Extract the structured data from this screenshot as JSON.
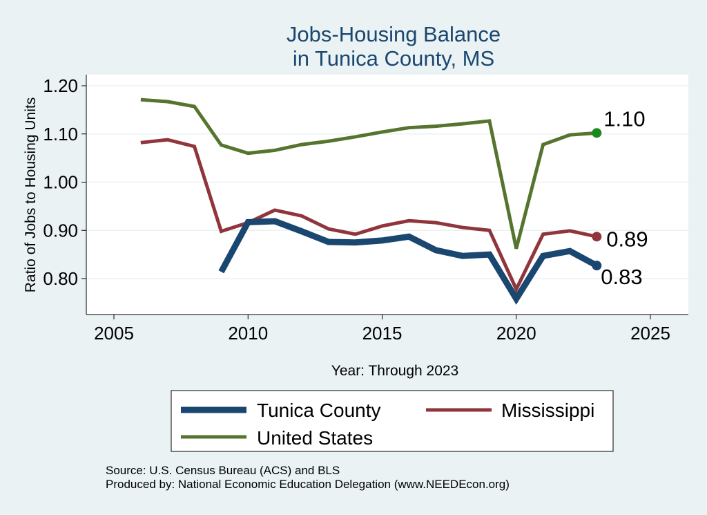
{
  "chart_data": {
    "type": "line",
    "title": [
      "Jobs-Housing Balance",
      "in Tunica County, MS"
    ],
    "xlabel": "Year: Through 2023",
    "ylabel": "Ratio of Jobs to Housing Units",
    "xlim": [
      2005,
      2026
    ],
    "ylim": [
      0.73,
      1.225
    ],
    "xticks": [
      2005,
      2010,
      2015,
      2020,
      2025
    ],
    "yticks": [
      0.8,
      0.9,
      1.0,
      1.1,
      1.2
    ],
    "ytick_labels": [
      "0.80",
      "0.90",
      "1.00",
      "1.10",
      "1.20"
    ],
    "grid": true,
    "legend_position": "bottom",
    "series": [
      {
        "name": "Tunica County",
        "color": "#1a476f",
        "width": 9,
        "x": [
          2009,
          2010,
          2011,
          2012,
          2013,
          2014,
          2015,
          2016,
          2017,
          2018,
          2019,
          2020,
          2021,
          2022,
          2023
        ],
        "values": [
          0.814,
          0.917,
          0.919,
          0.898,
          0.876,
          0.875,
          0.879,
          0.887,
          0.859,
          0.847,
          0.85,
          0.758,
          0.847,
          0.857,
          0.827
        ],
        "end_label": "0.83"
      },
      {
        "name": "Mississippi",
        "color": "#90353b",
        "width": 5,
        "x": [
          2006,
          2007,
          2008,
          2009,
          2010,
          2011,
          2012,
          2013,
          2014,
          2015,
          2016,
          2017,
          2018,
          2019,
          2020,
          2021,
          2022,
          2023
        ],
        "values": [
          1.082,
          1.088,
          1.074,
          0.898,
          0.916,
          0.942,
          0.93,
          0.903,
          0.892,
          0.909,
          0.92,
          0.916,
          0.906,
          0.9,
          0.778,
          0.892,
          0.899,
          0.887
        ],
        "end_label": "0.89"
      },
      {
        "name": "United States",
        "color": "#55752f",
        "width": 5,
        "x": [
          2006,
          2007,
          2008,
          2009,
          2010,
          2011,
          2012,
          2013,
          2014,
          2015,
          2016,
          2017,
          2018,
          2019,
          2020,
          2021,
          2022,
          2023
        ],
        "values": [
          1.171,
          1.167,
          1.157,
          1.077,
          1.06,
          1.066,
          1.078,
          1.085,
          1.094,
          1.104,
          1.113,
          1.116,
          1.121,
          1.127,
          0.862,
          1.078,
          1.098,
          1.102
        ],
        "end_label": "1.10"
      }
    ],
    "end_marker_colors": {
      "Tunica County": "#1a476f",
      "Mississippi": "#90353b",
      "United States": "#1a8a1a"
    },
    "notes": [
      "Source: U.S. Census Bureau (ACS) and BLS",
      "Produced by: National Economic Education Delegation (www.NEEDEcon.org)"
    ]
  }
}
